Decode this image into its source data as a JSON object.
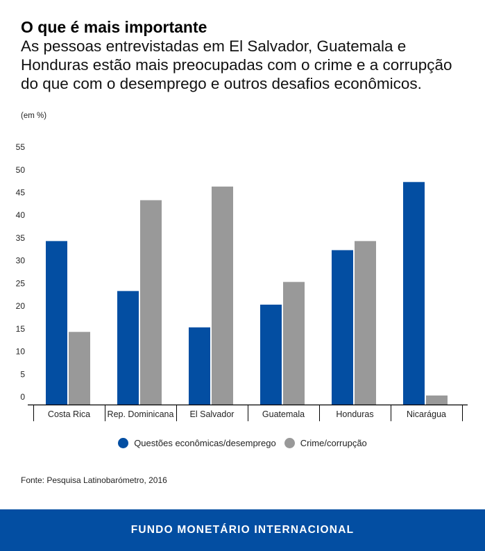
{
  "header": {
    "title": "O que é mais importante",
    "subtitle": "As pessoas entrevistadas em El Salvador, Guatemala e Honduras estão mais preocupadas com o crime e a corrupção do que com o desemprego e outros desafios econômicos.",
    "unit": "(em %)"
  },
  "chart_data": {
    "type": "bar",
    "title": "O que é mais importante",
    "xlabel": "",
    "ylabel": "(em %)",
    "ylim": [
      0,
      55
    ],
    "yticks": [
      0,
      5,
      10,
      15,
      20,
      25,
      30,
      35,
      40,
      45,
      50,
      55
    ],
    "grid": false,
    "legend_position": "bottom-center",
    "categories": [
      "Costa Rica",
      "Rep. Dominicana",
      "El Salvador",
      "Guatemala",
      "Honduras",
      "Nicarágua"
    ],
    "series": [
      {
        "name": "Questões econômicas/desemprego",
        "color": "#034EA2",
        "values": [
          36,
          25,
          17,
          22,
          34,
          49
        ]
      },
      {
        "name": "Crime/corrupção",
        "color": "#999999",
        "values": [
          16,
          45,
          48,
          27,
          36,
          2
        ]
      }
    ]
  },
  "source": "Fonte: Pesquisa Latinobarómetro, 2016",
  "footer": {
    "text": "FUNDO MONETÁRIO INTERNACIONAL",
    "background": "#034EA2"
  }
}
